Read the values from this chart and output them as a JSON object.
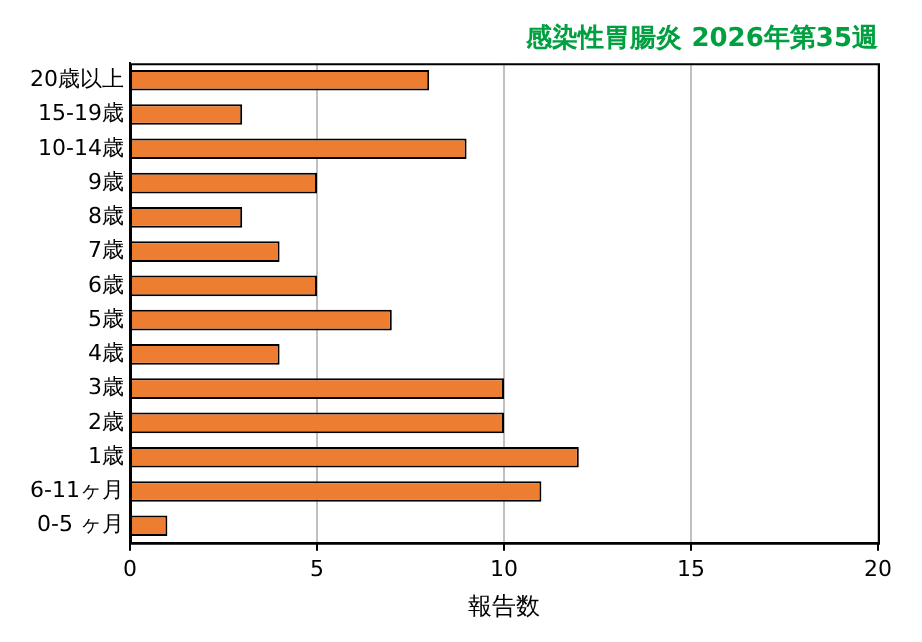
{
  "chart_data": {
    "type": "bar",
    "orientation": "horizontal",
    "title": "感染性胃腸炎 2026年第35週",
    "xlabel": "報告数",
    "categories": [
      "20歳以上",
      "15-19歳",
      "10-14歳",
      "9歳",
      "8歳",
      "7歳",
      "6歳",
      "5歳",
      "4歳",
      "3歳",
      "2歳",
      "1歳",
      "6-11ヶ月",
      "0-5 ヶ月"
    ],
    "values": [
      8,
      3,
      9,
      5,
      3,
      4,
      5,
      7,
      4,
      10,
      10,
      12,
      11,
      1
    ],
    "color": "#ed7d31",
    "xlim": [
      0,
      20
    ],
    "xticks": [
      0,
      5,
      10,
      15,
      20
    ],
    "grid": "x",
    "legend": false
  }
}
